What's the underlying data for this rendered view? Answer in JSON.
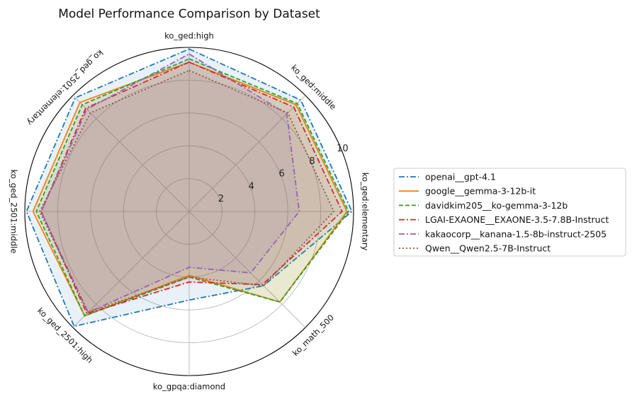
{
  "chart_data": {
    "type": "radar",
    "title": "Model Performance Comparison by Dataset",
    "axes": [
      "ko_ged:high",
      "ko_ged:middle",
      "ko_ged:elementary",
      "ko_math_500",
      "ko_gpqa:diamond",
      "ko_ged_2501:high",
      "ko_ged_2501:middle",
      "ko_ged_2501:elementary"
    ],
    "rlim": [
      0,
      10
    ],
    "r_ticks": [
      "2",
      "4",
      "6",
      "8",
      "10"
    ],
    "r_tick_values": [
      2,
      4,
      6,
      8,
      10
    ],
    "grid": true,
    "legend_position": "right",
    "series": [
      {
        "name": "openai__gpt-4.1",
        "color": "#1f77b4",
        "dash": "dashdot",
        "values": [
          9.9,
          9.6,
          9.9,
          6.4,
          5.4,
          9.9,
          9.9,
          9.8
        ]
      },
      {
        "name": "google__gemma-3-12b-it",
        "color": "#ff7f0e",
        "dash": "solid",
        "values": [
          9.1,
          9.2,
          9.6,
          7.8,
          3.9,
          9.0,
          9.5,
          9.4
        ]
      },
      {
        "name": "davidkim205__ko-gemma-3-12b",
        "color": "#2ca02c",
        "dash": "dashed",
        "values": [
          9.3,
          9.3,
          9.7,
          7.8,
          4.0,
          9.0,
          9.3,
          9.2
        ]
      },
      {
        "name": "LGAI-EXAONE__EXAONE-3.5-7.8B-Instruct",
        "color": "#d62728",
        "dash": "dashdot",
        "values": [
          9.1,
          9.0,
          9.3,
          6.3,
          4.3,
          8.8,
          9.0,
          8.9
        ]
      },
      {
        "name": "kakaocorp__kanana-1.5-8b-instruct-2505",
        "color": "#9467bd",
        "dash": "dashdot",
        "values": [
          9.6,
          8.4,
          6.7,
          5.3,
          3.4,
          8.7,
          9.0,
          8.8
        ]
      },
      {
        "name": "Qwen__Qwen2.5-7B-Instruct",
        "color": "#8c564b",
        "dash": "dotted",
        "values": [
          8.6,
          8.5,
          8.8,
          6.4,
          4.0,
          8.7,
          9.1,
          8.5
        ]
      }
    ]
  }
}
